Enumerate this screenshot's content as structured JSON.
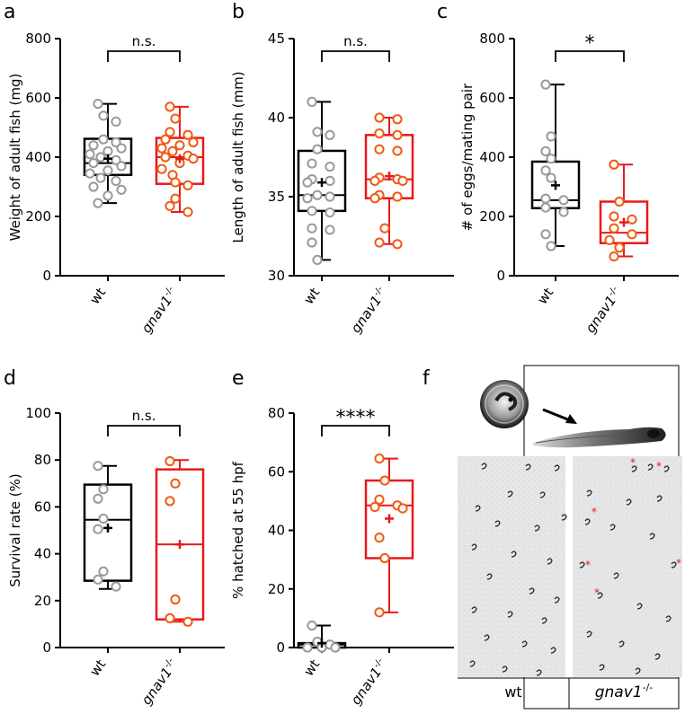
{
  "colors": {
    "wt": "#000000",
    "wt_points": "#999999",
    "ko": "#e8191a",
    "ko_points": "#f05a14",
    "star": "#e8191a"
  },
  "genotypes": {
    "wt": "wt",
    "ko_base": "gnav1",
    "ko_sup": "-/-"
  },
  "panel_f": {
    "letter": "f",
    "label_wt": "wt",
    "label_ko_base": "gnav1",
    "label_ko_sup": "-/-",
    "images": [
      "embryo-in-chorion",
      "hatched-larva",
      "wt-dish-photo",
      "gnav1-dish-photo"
    ],
    "arrow": "arrow-icon",
    "star_mark": "*"
  },
  "chart_data": [
    {
      "panel": "a",
      "type": "box",
      "ylabel": "Weight of adult fish (mg)",
      "ylim": [
        0,
        800
      ],
      "yticks": [
        0,
        200,
        400,
        600,
        800
      ],
      "categories": [
        "wt",
        "gnav1-/-"
      ],
      "significance": "n.s.",
      "series": [
        {
          "group": "wt",
          "whisker_low": 245,
          "q1": 340,
          "median": 380,
          "q3": 462,
          "whisker_high": 580,
          "mean": 395,
          "points": [
            580,
            540,
            520,
            460,
            450,
            440,
            430,
            420,
            410,
            400,
            390,
            380,
            370,
            355,
            345,
            330,
            320,
            300,
            290,
            270,
            245
          ]
        },
        {
          "group": "gnav1-/-",
          "whisker_low": 215,
          "q1": 310,
          "median": 400,
          "q3": 465,
          "whisker_high": 570,
          "mean": 395,
          "points": [
            570,
            530,
            485,
            475,
            460,
            450,
            440,
            430,
            420,
            405,
            400,
            395,
            380,
            360,
            340,
            315,
            305,
            260,
            235,
            215
          ]
        }
      ]
    },
    {
      "panel": "b",
      "type": "box",
      "ylabel": "Length of adult fish (mm)",
      "ylim": [
        30,
        45
      ],
      "yticks": [
        30,
        35,
        40,
        45
      ],
      "categories": [
        "wt",
        "gnav1-/-"
      ],
      "significance": "n.s.",
      "series": [
        {
          "group": "wt",
          "whisker_low": 31,
          "q1": 34.1,
          "median": 35.1,
          "q3": 37.9,
          "whisker_high": 41,
          "mean": 35.9,
          "points": [
            41,
            39.1,
            38.9,
            38,
            37.1,
            36.9,
            36.1,
            36,
            35.9,
            35.1,
            35,
            34.9,
            34.1,
            34,
            33,
            32.9,
            32.1,
            31
          ]
        },
        {
          "group": "gnav1-/-",
          "whisker_low": 32,
          "q1": 34.9,
          "median": 36.1,
          "q3": 38.9,
          "whisker_high": 40,
          "mean": 36.3,
          "points": [
            40,
            39.9,
            39,
            38.9,
            38,
            37.9,
            36.2,
            36.1,
            36,
            36,
            35.1,
            35,
            34.9,
            33,
            32.1,
            32
          ]
        }
      ]
    },
    {
      "panel": "c",
      "type": "box",
      "ylabel": "# of eggs/mating pair",
      "ylim": [
        0,
        800
      ],
      "yticks": [
        0,
        200,
        400,
        600,
        800
      ],
      "categories": [
        "wt",
        "gnav1-/-"
      ],
      "significance": "*",
      "series": [
        {
          "group": "wt",
          "whisker_low": 100,
          "q1": 228,
          "median": 255,
          "q3": 385,
          "whisker_high": 645,
          "mean": 305,
          "points": [
            645,
            470,
            420,
            395,
            355,
            330,
            260,
            255,
            230,
            215,
            140,
            100
          ]
        },
        {
          "group": "gnav1-/-",
          "whisker_low": 65,
          "q1": 110,
          "median": 145,
          "q3": 250,
          "whisker_high": 375,
          "mean": 180,
          "points": [
            375,
            250,
            200,
            190,
            160,
            140,
            120,
            95,
            65
          ]
        }
      ]
    },
    {
      "panel": "d",
      "type": "box",
      "ylabel": "Survival rate (%)",
      "ylim": [
        0,
        100
      ],
      "yticks": [
        0,
        20,
        40,
        60,
        80,
        100
      ],
      "categories": [
        "wt",
        "gnav1-/-"
      ],
      "significance": "n.s.",
      "series": [
        {
          "group": "wt",
          "whisker_low": 25,
          "q1": 28.5,
          "median": 54.5,
          "q3": 69.5,
          "whisker_high": 77.5,
          "mean": 51,
          "points": [
            77.5,
            67.5,
            63.5,
            55,
            50.5,
            32.5,
            29,
            26
          ]
        },
        {
          "group": "gnav1-/-",
          "whisker_low": 11,
          "q1": 12,
          "median": 44,
          "q3": 76,
          "whisker_high": 80,
          "mean": 44,
          "points": [
            79.5,
            70,
            62.5,
            20.5,
            12.5,
            11
          ]
        }
      ]
    },
    {
      "panel": "e",
      "type": "box",
      "ylabel": "% hatched at 55 hpf",
      "ylim": [
        0,
        80
      ],
      "yticks": [
        0,
        20,
        40,
        60,
        80
      ],
      "categories": [
        "wt",
        "gnav1-/-"
      ],
      "significance": "****",
      "series": [
        {
          "group": "wt",
          "whisker_low": 0,
          "q1": 0,
          "median": 1,
          "q3": 1.5,
          "whisker_high": 7.5,
          "mean": 1.5,
          "points": [
            7.5,
            2,
            1,
            0,
            0,
            0
          ]
        },
        {
          "group": "gnav1-/-",
          "whisker_low": 12,
          "q1": 30.5,
          "median": 48.5,
          "q3": 57,
          "whisker_high": 64.5,
          "mean": 44,
          "points": [
            64.5,
            57,
            50.5,
            48.5,
            48,
            47.5,
            37.5,
            30.5,
            12
          ]
        }
      ]
    }
  ]
}
